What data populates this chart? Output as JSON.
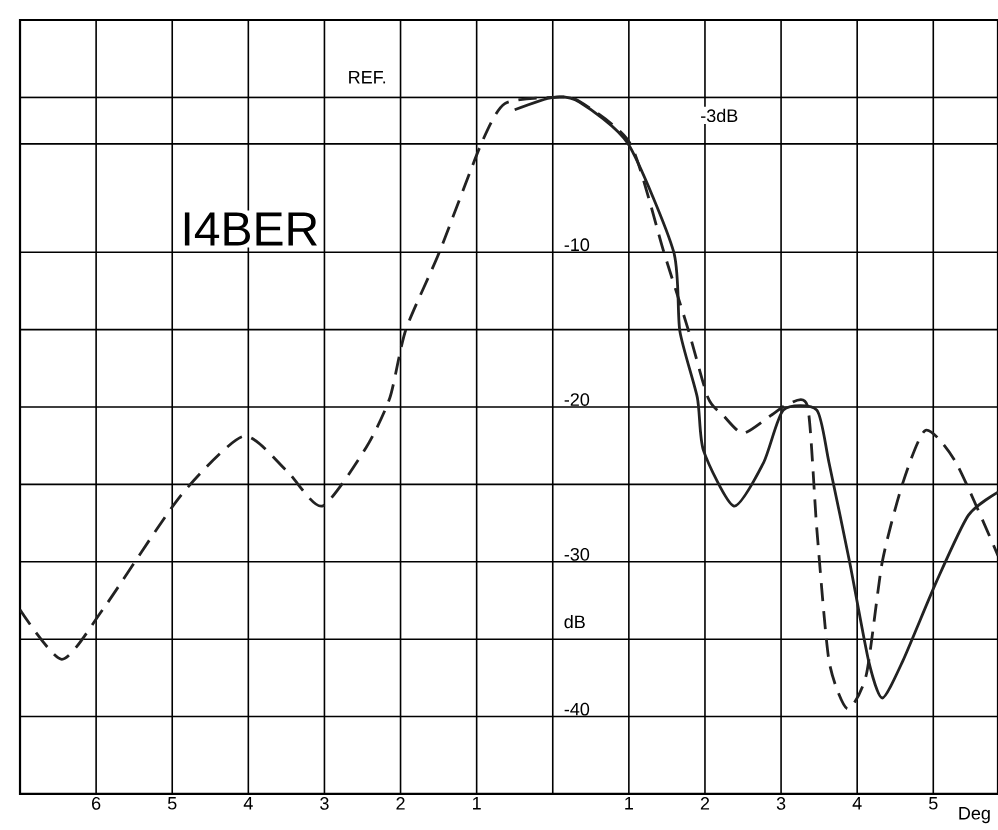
{
  "chart_data": {
    "type": "line",
    "xlabel": "Deg",
    "ylabel": "dB",
    "annotations": [
      "I4BER",
      "REF.",
      "-3dB"
    ],
    "xlim": [
      -7,
      5.85
    ],
    "ylim": [
      -45,
      5
    ],
    "xticks": [
      {
        "value": -6,
        "label": "6"
      },
      {
        "value": -5,
        "label": "5"
      },
      {
        "value": -4,
        "label": "4"
      },
      {
        "value": -3,
        "label": "3"
      },
      {
        "value": -2,
        "label": "2"
      },
      {
        "value": -1,
        "label": "1"
      },
      {
        "value": 0,
        "label": null
      },
      1,
      2,
      3,
      4,
      5
    ],
    "yticks": [
      {
        "value": 0,
        "label": null
      },
      {
        "value": -3,
        "label": null
      },
      -10,
      {
        "value": -15,
        "label": null
      },
      -20,
      {
        "value": -25,
        "label": null
      },
      -30,
      {
        "value": -35,
        "label": null
      },
      -40
    ],
    "grid": true,
    "marker": "none",
    "series": [
      {
        "color": "#222222",
        "line_style": "dashed",
        "x": [
          -7,
          -6.45,
          -5.9,
          -4.9,
          -4.07,
          -3.5,
          -3.03,
          -2.45,
          -2.14,
          -1.93,
          -1.49,
          -0.94,
          -0.63,
          0,
          0.33,
          1.02,
          1.46,
          1.78,
          2.04,
          2.25,
          2.5,
          2.85,
          3.1,
          3.35,
          3.47,
          3.63,
          3.87,
          4.12,
          4.33,
          4.6,
          4.9,
          5.3,
          5.85
        ],
        "values": [
          -33.1,
          -36.3,
          -33,
          -25.8,
          -21.9,
          -24.1,
          -26.4,
          -22.6,
          -19.4,
          -15,
          -10,
          -3,
          -0.4,
          0,
          -0.2,
          -3,
          -10,
          -15,
          -19.4,
          -20.6,
          -21.7,
          -20.6,
          -19.8,
          -20,
          -27.9,
          -36.4,
          -39.5,
          -37.3,
          -30,
          -24.9,
          -21.5,
          -23.6,
          -29.6
        ]
      },
      {
        "color": "#222222",
        "line_style": "solid",
        "x": [
          -0.5,
          0,
          0.35,
          0.99,
          1.59,
          1.67,
          1.9,
          1.98,
          2.38,
          2.77,
          3.03,
          3.47,
          3.63,
          3.9,
          4.15,
          4.33,
          4.6,
          5.04,
          5.46,
          5.85
        ],
        "values": [
          -0.8,
          0,
          -0.3,
          -3,
          -10,
          -15.1,
          -19.4,
          -22.8,
          -26.4,
          -23.6,
          -20.2,
          -20.2,
          -23.6,
          -30,
          -36.4,
          -38.8,
          -36.4,
          -31.3,
          -27,
          -25.5
        ]
      }
    ]
  }
}
